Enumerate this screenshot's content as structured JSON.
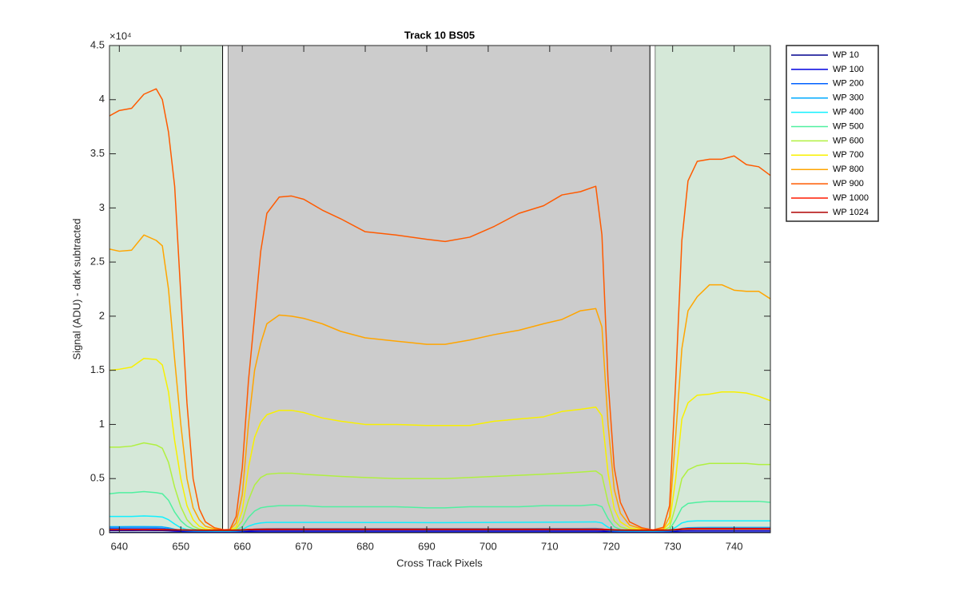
{
  "chart_data": {
    "type": "line",
    "title": "Track 10  BS05",
    "x_label": "Cross Track Pixels",
    "y_label": "Signal (ADU) - dark subtracted",
    "exponent_label": "×10⁴",
    "xlim": [
      638.4,
      745.9
    ],
    "ylim": [
      0,
      45000
    ],
    "xticks": [
      640,
      650,
      660,
      670,
      680,
      690,
      700,
      710,
      720,
      730,
      740
    ],
    "yticks": [
      0,
      {
        "value": 5000,
        "label": "0.5"
      },
      {
        "value": 10000,
        "label": "1"
      },
      {
        "value": 15000,
        "label": "1.5"
      },
      {
        "value": 20000,
        "label": "2"
      },
      {
        "value": 25000,
        "label": "2.5"
      },
      {
        "value": 30000,
        "label": "3"
      },
      {
        "value": 35000,
        "label": "3.5"
      },
      {
        "value": 40000,
        "label": "4"
      },
      {
        "value": 45000,
        "label": "4.5"
      }
    ],
    "grid": false,
    "legend_position": "outside-top-right",
    "shaded_regions": [
      {
        "xlim": [
          638.4,
          656.8
        ],
        "color": "#d5e8d8"
      },
      {
        "xlim": [
          656.8,
          657.7
        ],
        "color": "#ffffff"
      },
      {
        "xlim": [
          657.7,
          726.3
        ],
        "color": "#cccccc"
      },
      {
        "xlim": [
          726.3,
          727.2
        ],
        "color": "#ffffff"
      },
      {
        "xlim": [
          727.2,
          745.9
        ],
        "color": "#d5e8d8"
      }
    ],
    "x": [
      638.4,
      640,
      642,
      644,
      646,
      647,
      648,
      649,
      650,
      651,
      652,
      653,
      654,
      655.5,
      657,
      658,
      659,
      660,
      661,
      662,
      663,
      664,
      666,
      668,
      670,
      673,
      676,
      680,
      685,
      690,
      693,
      697,
      701,
      705,
      709,
      712,
      715,
      717.5,
      718.5,
      719.5,
      720.5,
      721.5,
      723,
      725,
      726.8,
      728.5,
      729.5,
      730.5,
      731.5,
      732.5,
      734,
      736,
      738,
      740,
      742,
      744,
      745.9
    ],
    "series": [
      {
        "name": "WP 10",
        "color": "#00008f",
        "values": [
          30,
          30,
          30,
          30,
          30,
          30,
          30,
          30,
          30,
          30,
          30,
          30,
          30,
          30,
          30,
          30,
          30,
          30,
          30,
          30,
          30,
          30,
          30,
          30,
          30,
          30,
          30,
          30,
          30,
          30,
          30,
          30,
          30,
          30,
          30,
          30,
          30,
          30,
          30,
          30,
          30,
          30,
          30,
          30,
          30,
          30,
          30,
          30,
          30,
          30,
          30,
          30,
          30,
          30,
          30,
          30,
          30
        ]
      },
      {
        "name": "WP 100",
        "color": "#0000e0",
        "values": [
          200,
          200,
          200,
          210,
          200,
          200,
          180,
          150,
          130,
          120,
          110,
          110,
          100,
          100,
          100,
          100,
          100,
          110,
          130,
          140,
          150,
          150,
          150,
          150,
          150,
          150,
          150,
          150,
          150,
          150,
          150,
          150,
          150,
          150,
          150,
          150,
          150,
          150,
          140,
          120,
          110,
          100,
          100,
          100,
          100,
          100,
          110,
          130,
          160,
          170,
          170,
          170,
          170,
          170,
          170,
          170,
          170
        ]
      },
      {
        "name": "WP 200",
        "color": "#0060ff",
        "values": [
          420,
          420,
          430,
          430,
          420,
          410,
          350,
          260,
          200,
          170,
          150,
          140,
          140,
          130,
          130,
          130,
          140,
          170,
          220,
          260,
          270,
          280,
          280,
          280,
          280,
          280,
          280,
          280,
          280,
          280,
          280,
          280,
          280,
          280,
          280,
          280,
          290,
          290,
          260,
          180,
          150,
          140,
          130,
          130,
          130,
          140,
          150,
          210,
          300,
          340,
          350,
          350,
          350,
          350,
          350,
          350,
          350
        ]
      },
      {
        "name": "WP 300",
        "color": "#00aaff",
        "values": [
          550,
          550,
          560,
          560,
          550,
          540,
          450,
          320,
          230,
          190,
          170,
          160,
          160,
          150,
          150,
          150,
          160,
          200,
          280,
          330,
          360,
          370,
          380,
          380,
          380,
          380,
          380,
          380,
          380,
          380,
          380,
          380,
          380,
          380,
          390,
          390,
          390,
          400,
          360,
          230,
          180,
          160,
          150,
          150,
          150,
          160,
          180,
          260,
          400,
          460,
          480,
          490,
          490,
          490,
          490,
          490,
          490
        ]
      },
      {
        "name": "WP 400",
        "color": "#10f0ff",
        "values": [
          1500,
          1500,
          1500,
          1550,
          1500,
          1450,
          1200,
          800,
          450,
          300,
          220,
          200,
          190,
          180,
          180,
          180,
          200,
          300,
          600,
          800,
          900,
          950,
          950,
          950,
          950,
          950,
          950,
          940,
          940,
          930,
          930,
          940,
          950,
          960,
          970,
          980,
          990,
          1000,
          900,
          500,
          280,
          220,
          200,
          190,
          180,
          190,
          230,
          500,
          900,
          1050,
          1100,
          1100,
          1100,
          1100,
          1100,
          1100,
          1100
        ]
      },
      {
        "name": "WP 500",
        "color": "#50f0a0",
        "values": [
          3600,
          3700,
          3700,
          3800,
          3700,
          3600,
          3000,
          1900,
          1100,
          600,
          350,
          250,
          220,
          200,
          200,
          200,
          250,
          550,
          1400,
          2000,
          2300,
          2400,
          2500,
          2500,
          2500,
          2400,
          2400,
          2400,
          2400,
          2300,
          2300,
          2400,
          2400,
          2400,
          2500,
          2500,
          2500,
          2600,
          2400,
          1300,
          550,
          300,
          230,
          210,
          200,
          220,
          300,
          1200,
          2300,
          2700,
          2800,
          2900,
          2900,
          2900,
          2900,
          2900,
          2800
        ]
      },
      {
        "name": "WP 600",
        "color": "#b0f040",
        "values": [
          7900,
          7900,
          8000,
          8300,
          8100,
          7800,
          6500,
          4200,
          2400,
          1200,
          600,
          350,
          260,
          220,
          210,
          220,
          350,
          1100,
          3000,
          4400,
          5100,
          5400,
          5500,
          5500,
          5400,
          5300,
          5200,
          5100,
          5000,
          5000,
          5000,
          5100,
          5200,
          5300,
          5400,
          5500,
          5600,
          5700,
          5300,
          2800,
          1100,
          550,
          300,
          230,
          210,
          250,
          500,
          2500,
          5000,
          5800,
          6200,
          6400,
          6400,
          6400,
          6400,
          6300,
          6300
        ]
      },
      {
        "name": "WP 700",
        "color": "#f8f000",
        "values": [
          15000,
          15100,
          15300,
          16100,
          16000,
          15500,
          13000,
          8500,
          5000,
          2500,
          1200,
          600,
          350,
          250,
          230,
          240,
          500,
          2000,
          6000,
          8800,
          10200,
          10900,
          11300,
          11300,
          11100,
          10600,
          10300,
          10000,
          10000,
          9900,
          9900,
          9900,
          10300,
          10500,
          10700,
          11200,
          11400,
          11600,
          10800,
          5500,
          2200,
          1000,
          450,
          280,
          230,
          300,
          900,
          5000,
          10500,
          12000,
          12700,
          12800,
          13000,
          13000,
          12900,
          12600,
          12200
        ]
      },
      {
        "name": "WP 800",
        "color": "#ffa500",
        "values": [
          26200,
          26000,
          26100,
          27500,
          27000,
          26500,
          22500,
          16000,
          10000,
          5000,
          2300,
          1200,
          600,
          350,
          270,
          280,
          900,
          3500,
          10000,
          15000,
          17500,
          19300,
          20100,
          20000,
          19800,
          19300,
          18600,
          18000,
          17700,
          17400,
          17400,
          17800,
          18300,
          18700,
          19300,
          19700,
          20500,
          20700,
          19000,
          10000,
          4000,
          1800,
          700,
          350,
          250,
          350,
          1500,
          9000,
          17000,
          20500,
          21800,
          22900,
          22900,
          22400,
          22300,
          22300,
          21600
        ]
      },
      {
        "name": "WP 900",
        "color": "#ff5a00",
        "values": [
          38500,
          39000,
          39200,
          40500,
          41000,
          40000,
          37000,
          32000,
          22000,
          12000,
          5000,
          2200,
          1000,
          450,
          280,
          300,
          1500,
          6000,
          14000,
          20000,
          26000,
          29500,
          31000,
          31100,
          30800,
          29800,
          29000,
          27800,
          27500,
          27100,
          26900,
          27300,
          28300,
          29500,
          30200,
          31200,
          31500,
          32000,
          27500,
          14000,
          6000,
          2800,
          1000,
          450,
          260,
          500,
          2500,
          14000,
          27000,
          32500,
          34300,
          34500,
          34500,
          34800,
          34000,
          33800,
          33000
        ]
      },
      {
        "name": "WP 1000",
        "color": "#ff1a00",
        "values": [
          300,
          300,
          310,
          310,
          300,
          300,
          290,
          280,
          270,
          260,
          250,
          250,
          240,
          240,
          240,
          240,
          250,
          270,
          300,
          320,
          330,
          340,
          340,
          340,
          340,
          340,
          340,
          340,
          340,
          340,
          340,
          340,
          340,
          340,
          340,
          340,
          340,
          340,
          330,
          300,
          280,
          260,
          250,
          240,
          240,
          250,
          260,
          300,
          360,
          390,
          400,
          400,
          400,
          400,
          400,
          400,
          400
        ]
      },
      {
        "name": "WP 1024",
        "color": "#b00000",
        "values": [
          260,
          260,
          260,
          260,
          260,
          250,
          250,
          240,
          240,
          230,
          230,
          220,
          220,
          220,
          220,
          220,
          220,
          240,
          260,
          270,
          280,
          280,
          280,
          280,
          280,
          280,
          280,
          280,
          280,
          280,
          280,
          280,
          280,
          280,
          280,
          280,
          280,
          280,
          270,
          250,
          240,
          230,
          220,
          220,
          220,
          220,
          230,
          260,
          300,
          310,
          320,
          320,
          320,
          320,
          320,
          320,
          320
        ]
      }
    ]
  }
}
